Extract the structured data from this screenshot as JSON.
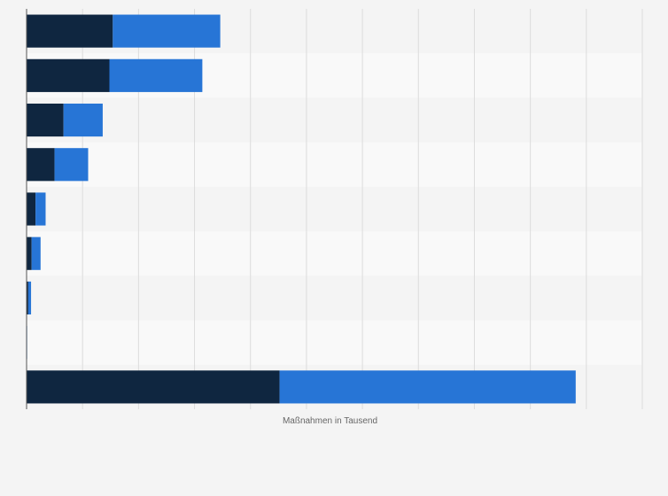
{
  "chart_data": {
    "type": "bar",
    "orientation": "horizontal",
    "stacked": true,
    "categories": [
      "",
      "",
      "",
      "",
      "",
      "",
      "",
      "",
      ""
    ],
    "series": [
      {
        "values": [
          15.4,
          14.8,
          6.6,
          5.0,
          1.6,
          0.9,
          0.3,
          0.05,
          45.2
        ]
      },
      {
        "values": [
          19.2,
          16.6,
          7.0,
          6.0,
          1.8,
          1.6,
          0.5,
          0.05,
          52.9
        ]
      }
    ],
    "xlim": [
      0,
      110
    ],
    "xlabel": "Maßnahmen in Tausend",
    "grid": true,
    "colors": {
      "series_1": "#0f2640",
      "series_2": "#2775d6",
      "band_odd": "#f4f4f4",
      "band_even": "#f9f9f9",
      "grid": "#dcdcdc",
      "axis": "#555555",
      "label": "#666666"
    }
  }
}
